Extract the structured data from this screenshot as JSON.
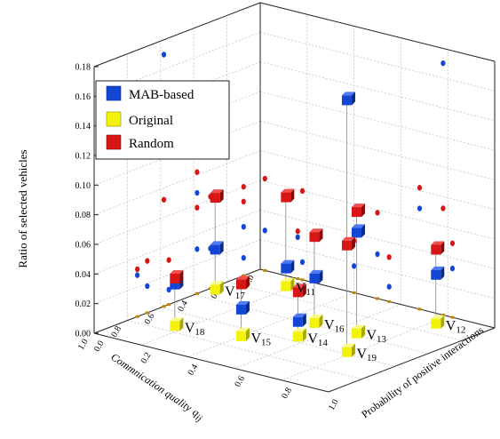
{
  "chart_data": {
    "type": "scatter3d",
    "xlabel": "Commnication quality",
    "xlabel_symbol": "q",
    "xlabel_subscript": "ij",
    "ylabel": "Probability of positive interactions",
    "zlabel": "Ratio of selected vehicles",
    "xlim": [
      0,
      1.0
    ],
    "ylim": [
      0,
      1.0
    ],
    "zlim": [
      0,
      0.18
    ],
    "x_ticks": [
      "0.0",
      "0.2",
      "0.4",
      "0.6",
      "0.8",
      "1.0"
    ],
    "y_ticks": [
      "0.0",
      "0.2",
      "0.4",
      "0.6",
      "0.8",
      "1.0"
    ],
    "z_ticks": [
      "0.00",
      "0.02",
      "0.04",
      "0.06",
      "0.08",
      "0.10",
      "0.12",
      "0.14",
      "0.16",
      "0.18"
    ],
    "legend": {
      "position": "upper-left"
    },
    "colors": {
      "MAB-based": "#1446d6",
      "Original": "#f2f20c",
      "Random": "#d81616"
    },
    "series": [
      {
        "name": "MAB-based",
        "points": [
          {
            "v": "11",
            "x": 0.1,
            "y": 0.18,
            "z": 0.012
          },
          {
            "v": "12",
            "x": 0.1,
            "y": 0.82,
            "z": 0.033
          },
          {
            "v": "13",
            "x": 0.38,
            "y": 0.68,
            "z": 0.068
          },
          {
            "v": "14",
            "x": 0.55,
            "y": 0.55,
            "z": 0.01
          },
          {
            "v": "15",
            "x": 0.68,
            "y": 0.4,
            "z": 0.018
          },
          {
            "v": "16",
            "x": 0.38,
            "y": 0.5,
            "z": 0.03
          },
          {
            "v": "17",
            "x": 0.3,
            "y": 0.02,
            "z": 0.027
          },
          {
            "v": "18",
            "x": 0.74,
            "y": 0.16,
            "z": 0.028
          },
          {
            "v": "19",
            "x": 0.58,
            "y": 0.78,
            "z": 0.17
          }
        ]
      },
      {
        "name": "Original",
        "points": [
          {
            "v": "11",
            "x": 0.1,
            "y": 0.18,
            "z": 0
          },
          {
            "v": "12",
            "x": 0.1,
            "y": 0.82,
            "z": 0
          },
          {
            "v": "13",
            "x": 0.38,
            "y": 0.68,
            "z": 0
          },
          {
            "v": "14",
            "x": 0.55,
            "y": 0.55,
            "z": 0
          },
          {
            "v": "15",
            "x": 0.68,
            "y": 0.4,
            "z": 0
          },
          {
            "v": "16",
            "x": 0.38,
            "y": 0.5,
            "z": 0
          },
          {
            "v": "17",
            "x": 0.3,
            "y": 0.02,
            "z": 0
          },
          {
            "v": "18",
            "x": 0.74,
            "y": 0.16,
            "z": 0
          },
          {
            "v": "19",
            "x": 0.58,
            "y": 0.78,
            "z": 0
          }
        ]
      },
      {
        "name": "Random",
        "points": [
          {
            "v": "11",
            "x": 0.1,
            "y": 0.18,
            "z": 0.06
          },
          {
            "v": "12",
            "x": 0.1,
            "y": 0.82,
            "z": 0.05
          },
          {
            "v": "13",
            "x": 0.38,
            "y": 0.68,
            "z": 0.082
          },
          {
            "v": "14",
            "x": 0.55,
            "y": 0.55,
            "z": 0.03
          },
          {
            "v": "15",
            "x": 0.68,
            "y": 0.4,
            "z": 0.035
          },
          {
            "v": "16",
            "x": 0.38,
            "y": 0.5,
            "z": 0.058
          },
          {
            "v": "17",
            "x": 0.3,
            "y": 0.02,
            "z": 0.062
          },
          {
            "v": "18",
            "x": 0.74,
            "y": 0.16,
            "z": 0.032
          },
          {
            "v": "19",
            "x": 0.58,
            "y": 0.78,
            "z": 0.072
          }
        ]
      }
    ],
    "point_label_prefix": "V"
  }
}
